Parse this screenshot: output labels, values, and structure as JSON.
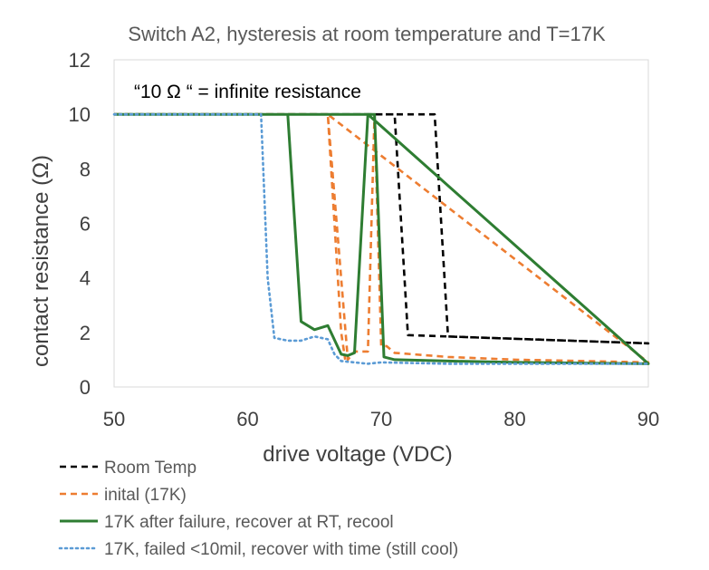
{
  "chart_data": {
    "type": "line",
    "title": "Switch A2, hysteresis at room temperature and T=17K",
    "xlabel": "drive voltage (VDC)",
    "ylabel": "contact resistance (Ω)",
    "xlim": [
      50,
      90
    ],
    "ylim": [
      0,
      12
    ],
    "xticks": [
      50,
      60,
      70,
      80,
      90
    ],
    "yticks": [
      0,
      2,
      4,
      6,
      8,
      10,
      12
    ],
    "grid": false,
    "legend_position": "bottom",
    "annotation": "“10 Ω “ = infinite resistance",
    "series": [
      {
        "name": "Room Temp",
        "color": "#000000",
        "style": "dashed",
        "x": [
          50,
          74,
          75,
          90,
          72,
          71,
          50
        ],
        "y": [
          10,
          10,
          1.85,
          1.6,
          1.9,
          10,
          10
        ]
      },
      {
        "name": "inital (17K)",
        "color": "#ED7D31",
        "style": "dashed",
        "x": [
          50,
          66,
          66.5,
          67.5,
          68,
          69,
          69.5,
          70,
          70.4,
          71,
          75,
          80,
          90,
          66,
          67,
          67.3
        ],
        "y": [
          10,
          10,
          7,
          1.0,
          1.3,
          1.3,
          10,
          1.5,
          1.5,
          1.25,
          1.1,
          1.0,
          0.9,
          10,
          2.0,
          1.0
        ]
      },
      {
        "name": "17K after failure, recover at RT, recool",
        "color": "#2E7D32",
        "style": "solid",
        "x": [
          50,
          69.5,
          70.2,
          71,
          75,
          80,
          90,
          69,
          68,
          67.5,
          67,
          66,
          65,
          64,
          63,
          50
        ],
        "y": [
          10,
          10,
          1.1,
          1.0,
          0.95,
          0.9,
          0.85,
          10,
          1.25,
          1.15,
          1.2,
          2.25,
          2.1,
          2.4,
          10,
          10
        ]
      },
      {
        "name": "17K, failed <10mil, recover with time (still cool)",
        "color": "#5B9BD5",
        "style": "dotted",
        "x": [
          50,
          61,
          61.5,
          62,
          63,
          64,
          65,
          66,
          66.5,
          67,
          68,
          69,
          70,
          75,
          80,
          90
        ],
        "y": [
          10,
          10,
          4,
          1.8,
          1.7,
          1.7,
          1.85,
          1.75,
          1.2,
          0.95,
          0.9,
          0.85,
          0.9,
          0.85,
          0.85,
          0.85
        ]
      }
    ]
  }
}
